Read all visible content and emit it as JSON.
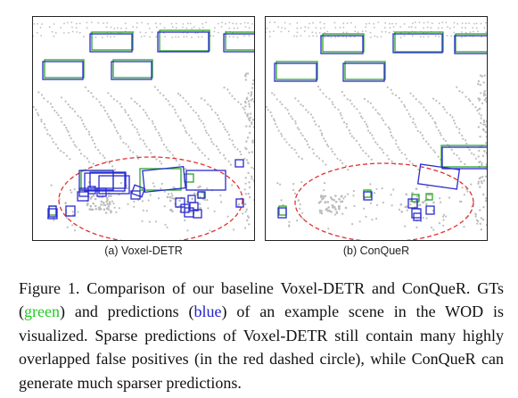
{
  "colors": {
    "gt": "#2aa52a",
    "pred": "#2a2ad0",
    "circle": "#e03030",
    "points": "#bdbdbd",
    "caption_green": "#22cc22",
    "caption_blue": "#2222cc"
  },
  "panels": [
    {
      "id": "a",
      "label": "(a) Voxel-DETR"
    },
    {
      "id": "b",
      "label": "(b) ConQueR"
    }
  ],
  "caption": {
    "p1": "Figure 1. Comparison of our baseline Voxel-DETR and ConQueR. GTs (",
    "green_word": "green",
    "p2": ") and predictions (",
    "blue_word": "blue",
    "p3": ") of an example scene in the WOD is visualized. Sparse predictions of Voxel-DETR still contain many highly overlapped false positives (in the red dashed circle), while ConQueR can generate much sparser predictions."
  }
}
